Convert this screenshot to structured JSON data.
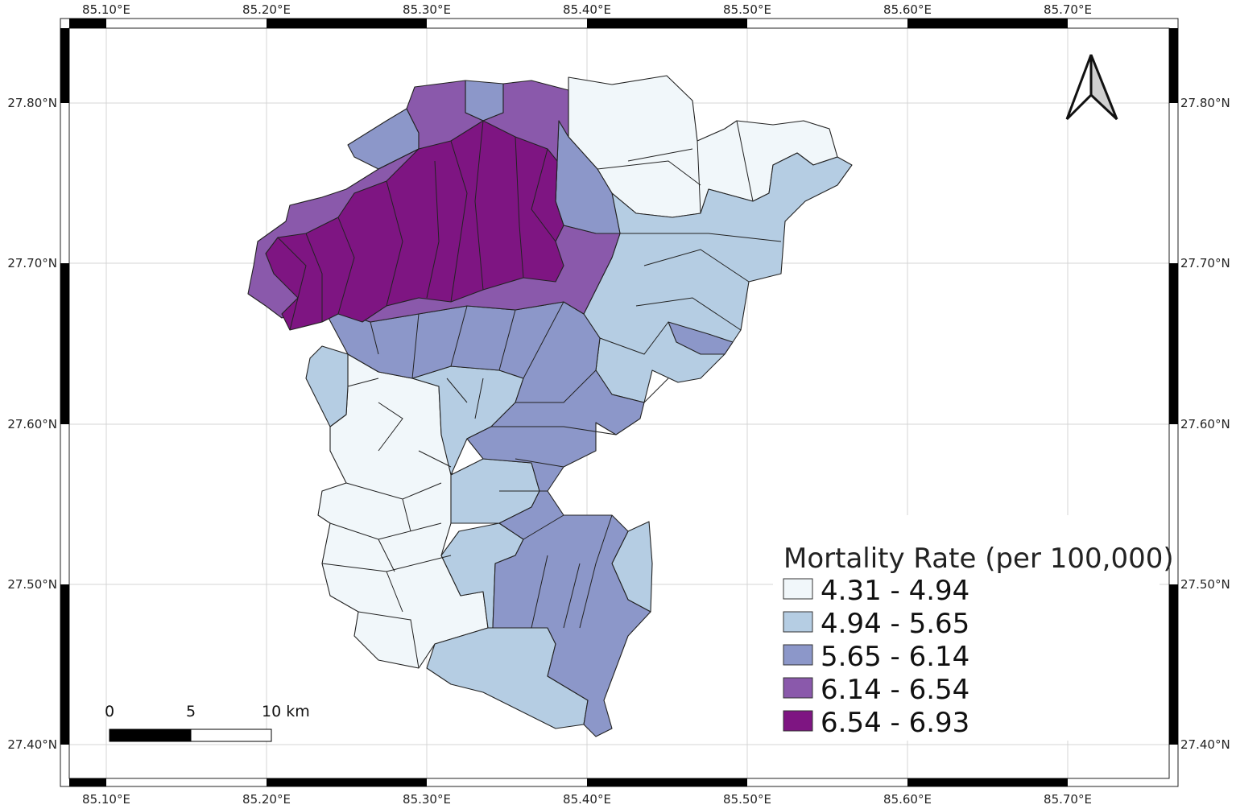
{
  "map": {
    "lon_ticks": [
      "85.10°E",
      "85.20°E",
      "85.30°E",
      "85.40°E",
      "85.50°E",
      "85.60°E",
      "85.70°E"
    ],
    "lat_ticks": [
      "27.80°N",
      "27.70°N",
      "27.60°N",
      "27.50°N",
      "27.40°N"
    ]
  },
  "legend": {
    "title": "Mortality Rate (per 100,000)",
    "classes": [
      {
        "label": "4.31 - 4.94",
        "color": "#f1f7fa"
      },
      {
        "label": "4.94 - 5.65",
        "color": "#b5cde3"
      },
      {
        "label": "5.65 - 6.14",
        "color": "#8c97c9"
      },
      {
        "label": "6.14 - 6.54",
        "color": "#8a59ab"
      },
      {
        "label": "6.54 - 6.93",
        "color": "#7e1582"
      }
    ]
  },
  "scale_bar": {
    "labels": [
      "0",
      "5",
      "10 km"
    ]
  },
  "north_arrow": {
    "icon": "north-arrow-icon"
  }
}
